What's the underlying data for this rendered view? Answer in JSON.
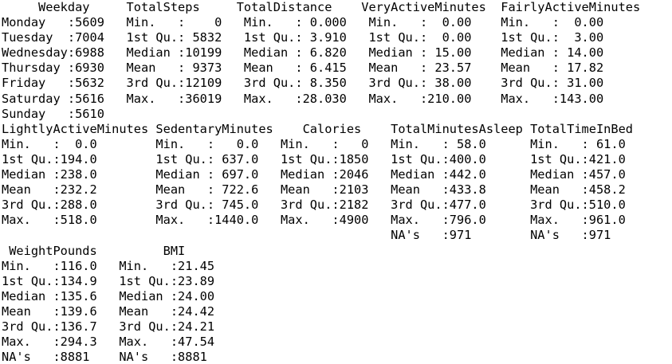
{
  "console": {
    "lines": [
      "     Weekday     TotalSteps     TotalDistance    VeryActiveMinutes  FairlyActiveMinutes",
      "Monday   :5609   Min.   :    0   Min.   : 0.000   Min.   :  0.00    Min.   :  0.00     ",
      "Tuesday  :7004   1st Qu.: 5832   1st Qu.: 3.910   1st Qu.:  0.00    1st Qu.:  3.00     ",
      "Wednesday:6988   Median :10199   Median : 6.820   Median : 15.00    Median : 14.00     ",
      "Thursday :6930   Mean   : 9373   Mean   : 6.415   Mean   : 23.57    Mean   : 17.82     ",
      "Friday   :5632   3rd Qu.:12109   3rd Qu.: 8.350   3rd Qu.: 38.00    3rd Qu.: 31.00     ",
      "Saturday :5616   Max.   :36019   Max.   :28.030   Max.   :210.00    Max.   :143.00     ",
      "Sunday   :5610                                                                          ",
      "LightlyActiveMinutes SedentaryMinutes    Calories    TotalMinutesAsleep TotalTimeInBed",
      "Min.   :  0.0        Min.   :   0.0   Min.   :   0   Min.   : 58.0      Min.   : 61.0  ",
      "1st Qu.:194.0        1st Qu.: 637.0   1st Qu.:1850   1st Qu.:400.0      1st Qu.:421.0  ",
      "Median :238.0        Median : 697.0   Median :2046   Median :442.0      Median :457.0  ",
      "Mean   :232.2        Mean   : 722.6   Mean   :2103   Mean   :433.8      Mean   :458.2  ",
      "3rd Qu.:288.0        3rd Qu.: 745.0   3rd Qu.:2182   3rd Qu.:477.0      3rd Qu.:510.0  ",
      "Max.   :518.0        Max.   :1440.0   Max.   :4900   Max.   :796.0      Max.   :961.0  ",
      "                                                     NA's   :971        NA's   :971    ",
      " WeightPounds         BMI       ",
      "Min.   :116.0   Min.   :21.45  ",
      "1st Qu.:134.9   1st Qu.:23.89  ",
      "Median :135.6   Median :24.00  ",
      "Mean   :139.6   Mean   :24.42  ",
      "3rd Qu.:136.7   3rd Qu.:24.21  ",
      "Max.   :294.3   Max.   :47.54  ",
      "NA's   :8881    NA's   :8881   "
    ]
  }
}
